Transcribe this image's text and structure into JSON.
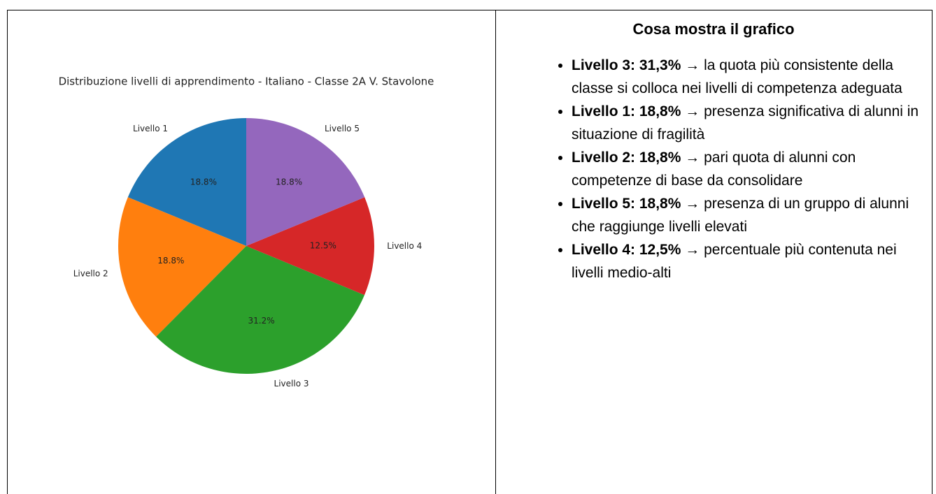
{
  "chart_data": {
    "type": "pie",
    "title": "Distribuzione livelli di apprendimento - Italiano - Classe 2A V. Stavolone",
    "categories": [
      "Livello 1",
      "Livello 2",
      "Livello 3",
      "Livello 4",
      "Livello 5"
    ],
    "values": [
      18.8,
      18.8,
      31.2,
      12.5,
      18.8
    ],
    "value_labels": [
      "18.8%",
      "18.8%",
      "31.2%",
      "12.5%",
      "18.8%"
    ],
    "colors": [
      "#1f77b4",
      "#ff7f0e",
      "#2ca02c",
      "#d62728",
      "#9467bd"
    ]
  },
  "notes": {
    "title": "Cosa mostra il grafico",
    "items": [
      {
        "label": "Livello 3: 31,3%",
        "text": "→ la quota più consistente della classe si colloca nei livelli di competenza adeguata"
      },
      {
        "label": "Livello 1: 18,8%",
        "text": "→ presenza significativa di alunni in situazione di fragilità"
      },
      {
        "label": "Livello 2: 18,8%",
        "text": "→ pari quota di alunni con competenze di base da consolidare"
      },
      {
        "label": "Livello 5: 18,8%",
        "text": "→ presenza di un gruppo di alunni che raggiunge livelli elevati"
      },
      {
        "label": "Livello 4: 12,5%",
        "text": "→ percentuale più contenuta nei livelli medio-alti"
      }
    ]
  }
}
